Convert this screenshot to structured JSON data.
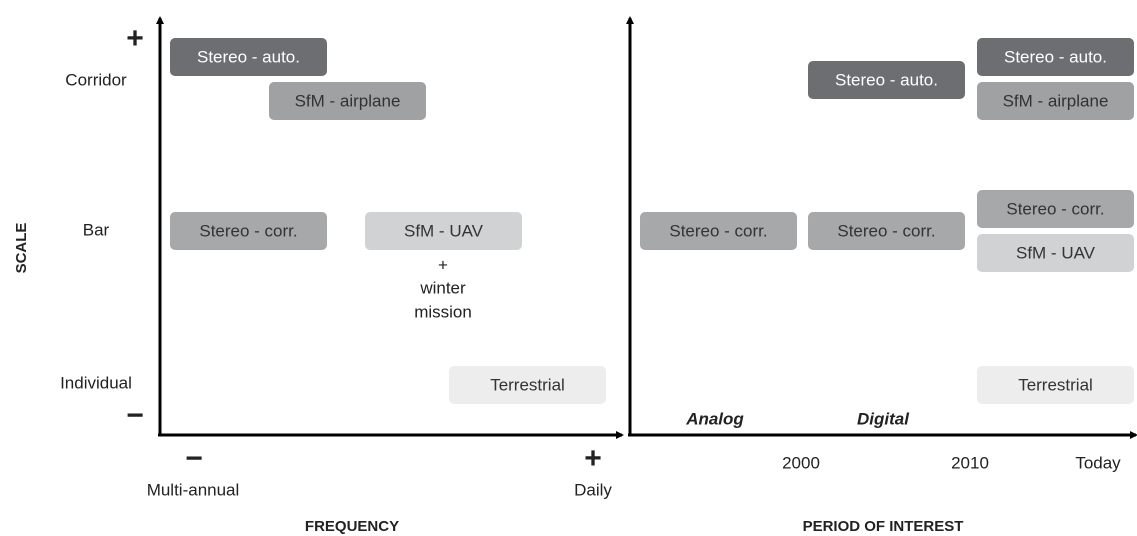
{
  "y_axis_title": "SCALE",
  "y_plus": "+",
  "y_minus": "−",
  "y_levels": [
    "Corridor",
    "Bar",
    "Individual"
  ],
  "left_panel": {
    "x_minus": "−",
    "x_plus": "+",
    "x_low": "Multi-annual",
    "x_high": "Daily",
    "x_axis_title": "FREQUENCY",
    "boxes": [
      {
        "label": "Stereo - auto.",
        "color": "#6d6e71"
      },
      {
        "label": "SfM - airplane",
        "color": "#a0a1a3"
      },
      {
        "label": "Stereo - corr.",
        "color": "#a7a8aa"
      },
      {
        "label": "SfM - UAV",
        "color": "#d1d2d3"
      },
      {
        "label": "Terrestrial",
        "color": "#ededed"
      }
    ],
    "note": [
      "+",
      "winter",
      "mission"
    ]
  },
  "right_panel": {
    "eras": [
      "Analog",
      "Digital"
    ],
    "x_ticks": [
      "2000",
      "2010",
      "Today"
    ],
    "x_axis_title": "PERIOD OF INTEREST",
    "boxes": [
      {
        "label": "Stereo - corr.",
        "color": "#a7a8aa"
      },
      {
        "label": "Stereo - auto.",
        "color": "#6d6e71"
      },
      {
        "label": "Stereo - corr.",
        "color": "#a7a8aa"
      },
      {
        "label": "Stereo - auto.",
        "color": "#6d6e71"
      },
      {
        "label": "SfM - airplane",
        "color": "#a0a1a3"
      },
      {
        "label": "Stereo - corr.",
        "color": "#a7a8aa"
      },
      {
        "label": "SfM - UAV",
        "color": "#d1d2d3"
      },
      {
        "label": "Terrestrial",
        "color": "#ededed"
      }
    ]
  }
}
